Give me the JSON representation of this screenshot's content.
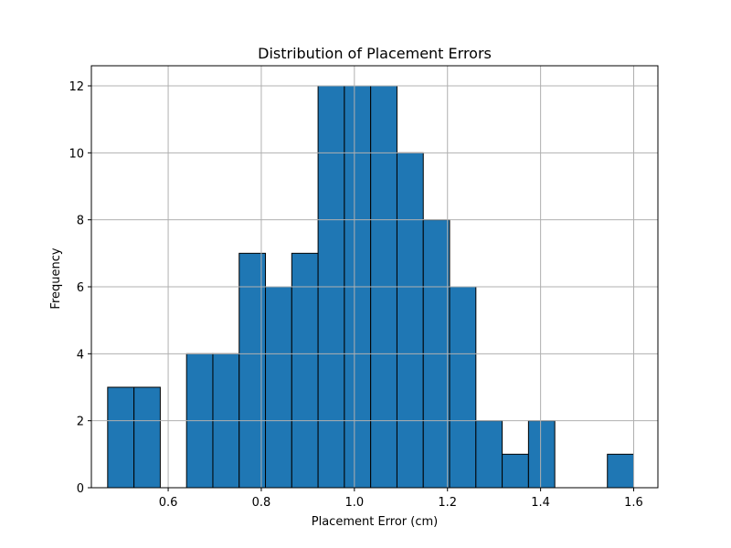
{
  "chart_data": {
    "type": "bar",
    "title": "Distribution of Placement Errors",
    "xlabel": "Placement Error (cm)",
    "ylabel": "Frequency",
    "bar_color": "#1f77b4",
    "edge_color": "#000000",
    "grid": true,
    "xlim": [
      0.435,
      1.652
    ],
    "ylim": [
      0,
      12.6
    ],
    "xticks": [
      0.6,
      0.8,
      1.0,
      1.2,
      1.4,
      1.6
    ],
    "xtick_labels": [
      "0.6",
      "0.8",
      "1.0",
      "1.2",
      "1.4",
      "1.6"
    ],
    "yticks": [
      0,
      2,
      4,
      6,
      8,
      10,
      12
    ],
    "ytick_labels": [
      "0",
      "2",
      "4",
      "6",
      "8",
      "10",
      "12"
    ],
    "bin_edges": [
      0.47,
      0.5265,
      0.583,
      0.6395,
      0.696,
      0.7525,
      0.809,
      0.8655,
      0.922,
      0.9785,
      1.035,
      1.0915,
      1.148,
      1.2045,
      1.261,
      1.3175,
      1.374,
      1.4305,
      1.487,
      1.5435,
      1.6
    ],
    "values": [
      3,
      3,
      0,
      4,
      4,
      7,
      6,
      7,
      12,
      12,
      12,
      10,
      8,
      6,
      2,
      1,
      2,
      0,
      0,
      1
    ]
  }
}
